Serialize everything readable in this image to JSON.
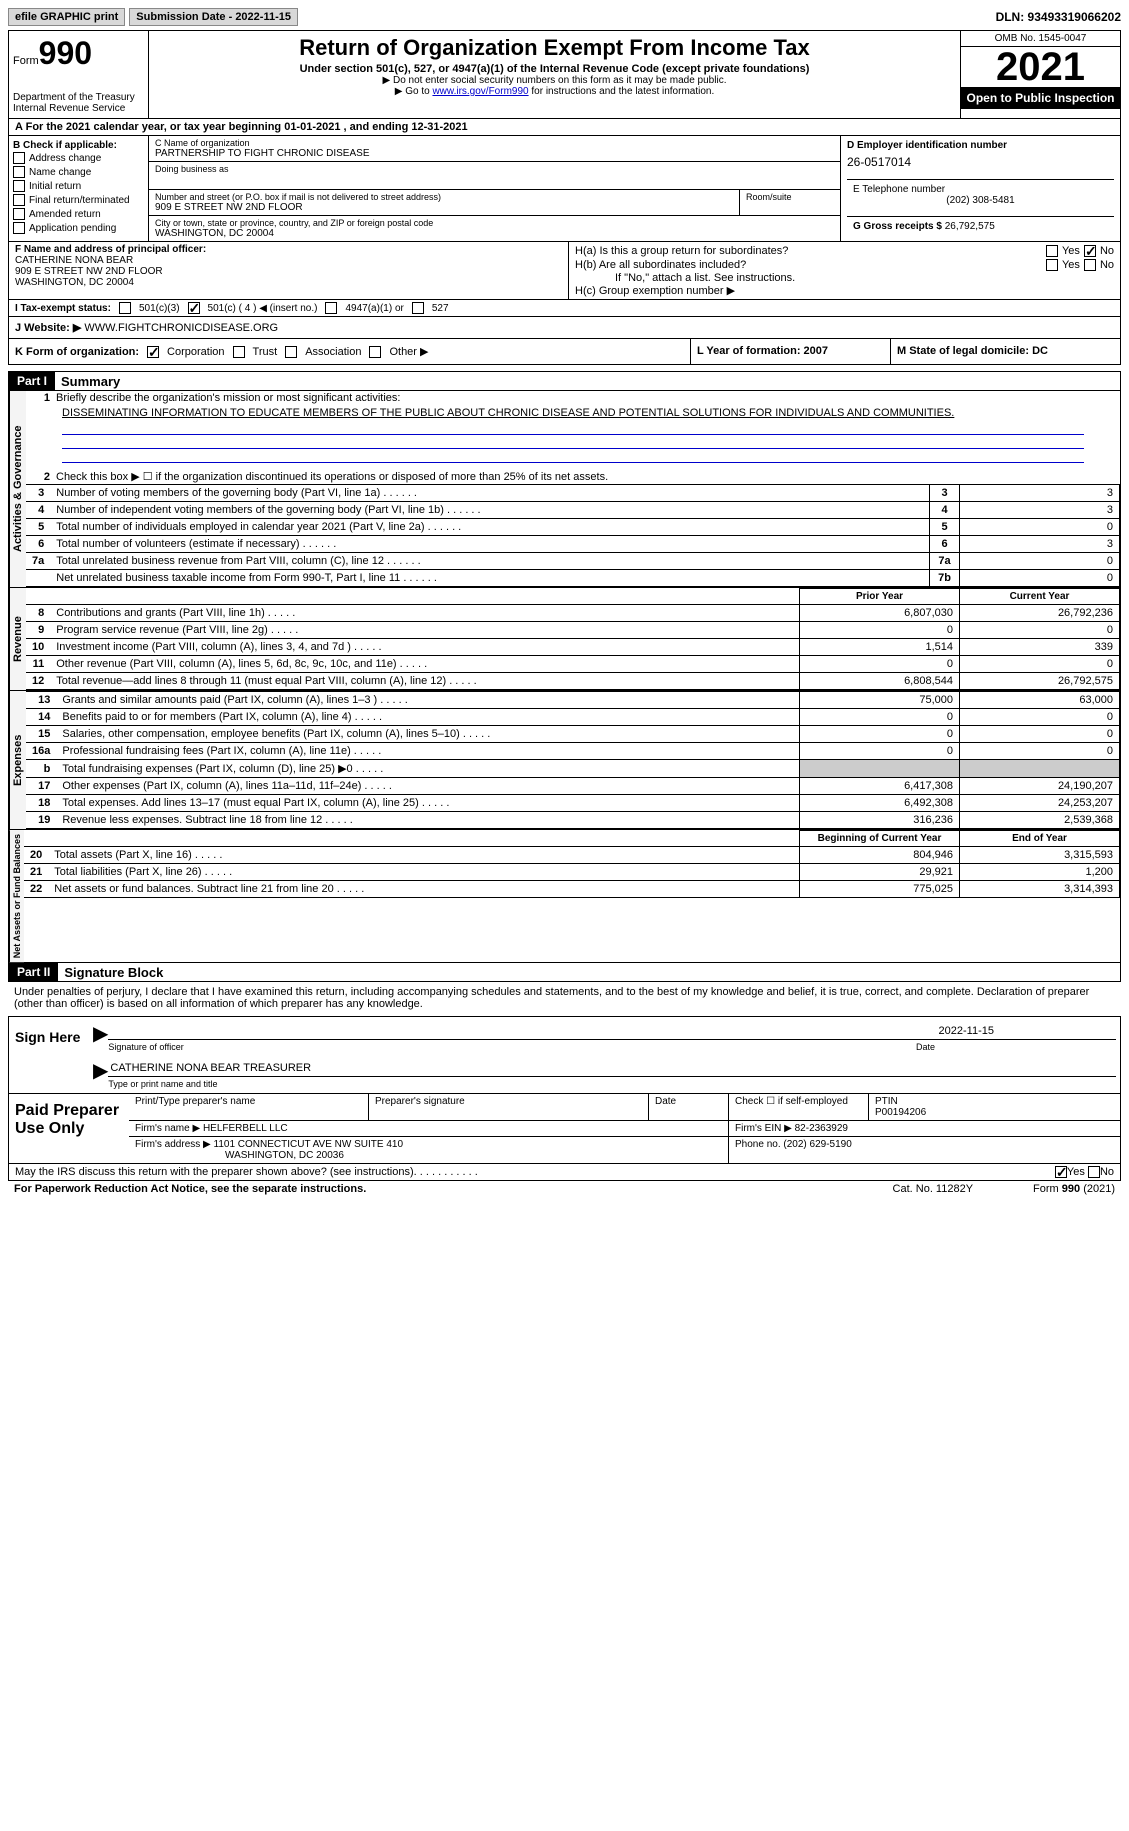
{
  "topbar": {
    "efile": "efile GRAPHIC print",
    "submission": "Submission Date - 2022-11-15",
    "dln": "DLN: 93493319066202"
  },
  "header": {
    "form_word": "Form",
    "form_num": "990",
    "dept": "Department of the Treasury\nInternal Revenue Service",
    "title": "Return of Organization Exempt From Income Tax",
    "subtitle": "Under section 501(c), 527, or 4947(a)(1) of the Internal Revenue Code (except private foundations)",
    "note1": "▶ Do not enter social security numbers on this form as it may be made public.",
    "note2_pre": "▶ Go to ",
    "note2_link": "www.irs.gov/Form990",
    "note2_post": " for instructions and the latest information.",
    "omb": "OMB No. 1545-0047",
    "year": "2021",
    "open": "Open to Public Inspection"
  },
  "period": "For the 2021 calendar year, or tax year beginning 01-01-2021   , and ending 12-31-2021",
  "section_b": {
    "heading": "B Check if applicable:",
    "addr_change": "Address change",
    "name_change": "Name change",
    "initial": "Initial return",
    "final": "Final return/terminated",
    "amended": "Amended return",
    "app_pending": "Application pending"
  },
  "section_c": {
    "name_label": "C Name of organization",
    "name": "PARTNERSHIP TO FIGHT CHRONIC DISEASE",
    "dba_label": "Doing business as",
    "street_label": "Number and street (or P.O. box if mail is not delivered to street address)",
    "street": "909 E STREET NW 2ND FLOOR",
    "room_label": "Room/suite",
    "city_label": "City or town, state or province, country, and ZIP or foreign postal code",
    "city": "WASHINGTON, DC  20004"
  },
  "section_d": {
    "ein_label": "D Employer identification number",
    "ein": "26-0517014",
    "phone_label": "E Telephone number",
    "phone": "(202) 308-5481",
    "gross_label": "G Gross receipts $",
    "gross": "26,792,575"
  },
  "officer": {
    "label": "F  Name and address of principal officer:",
    "name": "CATHERINE NONA BEAR",
    "addr1": "909 E STREET NW 2ND FLOOR",
    "addr2": "WASHINGTON, DC  20004"
  },
  "section_h": {
    "ha": "H(a)  Is this a group return for subordinates?",
    "hb": "H(b)  Are all subordinates included?",
    "hb_note": "If \"No,\" attach a list. See instructions.",
    "hc": "H(c)  Group exemption number ▶",
    "yes": "Yes",
    "no": "No"
  },
  "status": {
    "label": "I   Tax-exempt status:",
    "c3": "501(c)(3)",
    "c": "501(c) ( 4 ) ◀ (insert no.)",
    "a4947": "4947(a)(1) or",
    "s527": "527"
  },
  "website": {
    "label": "J  Website: ▶",
    "url": "WWW.FIGHTCHRONICDISEASE.ORG"
  },
  "k_org": {
    "label": "K Form of organization:",
    "corp": "Corporation",
    "trust": "Trust",
    "assoc": "Association",
    "other": "Other ▶",
    "l": "L Year of formation: 2007",
    "m": "M State of legal domicile: DC"
  },
  "part1": {
    "hdr": "Part I",
    "title": "Summary",
    "line1": "Briefly describe the organization's mission or most significant activities:",
    "mission": "DISSEMINATING INFORMATION TO EDUCATE MEMBERS OF THE PUBLIC ABOUT CHRONIC DISEASE AND POTENTIAL SOLUTIONS FOR INDIVIDUALS AND COMMUNITIES.",
    "line2": "Check this box ▶ ☐ if the organization discontinued its operations or disposed of more than 25% of its net assets.",
    "sections": {
      "gov": "Activities & Governance",
      "rev": "Revenue",
      "exp": "Expenses",
      "net": "Net Assets or Fund Balances"
    },
    "gov_lines": [
      {
        "n": "3",
        "t": "Number of voting members of the governing body (Part VI, line 1a)",
        "box": "3",
        "v": "3"
      },
      {
        "n": "4",
        "t": "Number of independent voting members of the governing body (Part VI, line 1b)",
        "box": "4",
        "v": "3"
      },
      {
        "n": "5",
        "t": "Total number of individuals employed in calendar year 2021 (Part V, line 2a)",
        "box": "5",
        "v": "0"
      },
      {
        "n": "6",
        "t": "Total number of volunteers (estimate if necessary)",
        "box": "6",
        "v": "3"
      },
      {
        "n": "7a",
        "t": "Total unrelated business revenue from Part VIII, column (C), line 12",
        "box": "7a",
        "v": "0"
      },
      {
        "n": "",
        "t": "Net unrelated business taxable income from Form 990-T, Part I, line 11",
        "box": "7b",
        "v": "0"
      }
    ],
    "col_hdrs": {
      "prior": "Prior Year",
      "current": "Current Year",
      "begin": "Beginning of Current Year",
      "end": "End of Year"
    },
    "rev_lines": [
      {
        "n": "8",
        "t": "Contributions and grants (Part VIII, line 1h)",
        "p": "6,807,030",
        "c": "26,792,236"
      },
      {
        "n": "9",
        "t": "Program service revenue (Part VIII, line 2g)",
        "p": "0",
        "c": "0"
      },
      {
        "n": "10",
        "t": "Investment income (Part VIII, column (A), lines 3, 4, and 7d )",
        "p": "1,514",
        "c": "339"
      },
      {
        "n": "11",
        "t": "Other revenue (Part VIII, column (A), lines 5, 6d, 8c, 9c, 10c, and 11e)",
        "p": "0",
        "c": "0"
      },
      {
        "n": "12",
        "t": "Total revenue—add lines 8 through 11 (must equal Part VIII, column (A), line 12)",
        "p": "6,808,544",
        "c": "26,792,575"
      }
    ],
    "exp_lines": [
      {
        "n": "13",
        "t": "Grants and similar amounts paid (Part IX, column (A), lines 1–3 )",
        "p": "75,000",
        "c": "63,000"
      },
      {
        "n": "14",
        "t": "Benefits paid to or for members (Part IX, column (A), line 4)",
        "p": "0",
        "c": "0"
      },
      {
        "n": "15",
        "t": "Salaries, other compensation, employee benefits (Part IX, column (A), lines 5–10)",
        "p": "0",
        "c": "0"
      },
      {
        "n": "16a",
        "t": "Professional fundraising fees (Part IX, column (A), line 11e)",
        "p": "0",
        "c": "0"
      },
      {
        "n": "b",
        "t": "Total fundraising expenses (Part IX, column (D), line 25) ▶0",
        "p": "",
        "c": "",
        "gray": true
      },
      {
        "n": "17",
        "t": "Other expenses (Part IX, column (A), lines 11a–11d, 11f–24e)",
        "p": "6,417,308",
        "c": "24,190,207"
      },
      {
        "n": "18",
        "t": "Total expenses. Add lines 13–17 (must equal Part IX, column (A), line 25)",
        "p": "6,492,308",
        "c": "24,253,207"
      },
      {
        "n": "19",
        "t": "Revenue less expenses. Subtract line 18 from line 12",
        "p": "316,236",
        "c": "2,539,368"
      }
    ],
    "net_lines": [
      {
        "n": "20",
        "t": "Total assets (Part X, line 16)",
        "p": "804,946",
        "c": "3,315,593"
      },
      {
        "n": "21",
        "t": "Total liabilities (Part X, line 26)",
        "p": "29,921",
        "c": "1,200"
      },
      {
        "n": "22",
        "t": "Net assets or fund balances. Subtract line 21 from line 20",
        "p": "775,025",
        "c": "3,314,393"
      }
    ]
  },
  "part2": {
    "hdr": "Part II",
    "title": "Signature Block",
    "decl": "Under penalties of perjury, I declare that I have examined this return, including accompanying schedules and statements, and to the best of my knowledge and belief, it is true, correct, and complete. Declaration of preparer (other than officer) is based on all information of which preparer has any knowledge.",
    "sign_here": "Sign Here",
    "sig_officer": "Signature of officer",
    "sig_date": "2022-11-15",
    "date_label": "Date",
    "officer_name": "CATHERINE NONA BEAR  TREASURER",
    "type_name": "Type or print name and title",
    "paid_prep": "Paid Preparer Use Only",
    "print_name": "Print/Type preparer's name",
    "prep_sig": "Preparer's signature",
    "check_self": "Check ☐ if self-employed",
    "ptin_label": "PTIN",
    "ptin": "P00194206",
    "firm_name_label": "Firm's name    ▶",
    "firm_name": "HELFERBELL LLC",
    "firm_ein_label": "Firm's EIN ▶",
    "firm_ein": "82-2363929",
    "firm_addr_label": "Firm's address ▶",
    "firm_addr1": "1101 CONNECTICUT AVE NW SUITE 410",
    "firm_addr2": "WASHINGTON, DC  20036",
    "firm_phone_label": "Phone no.",
    "firm_phone": "(202) 629-5190"
  },
  "footer": {
    "discuss": "May the IRS discuss this return with the preparer shown above? (see instructions)",
    "yes": "Yes",
    "no": "No",
    "paperwork": "For Paperwork Reduction Act Notice, see the separate instructions.",
    "cat": "Cat. No. 11282Y",
    "form": "Form 990 (2021)"
  }
}
